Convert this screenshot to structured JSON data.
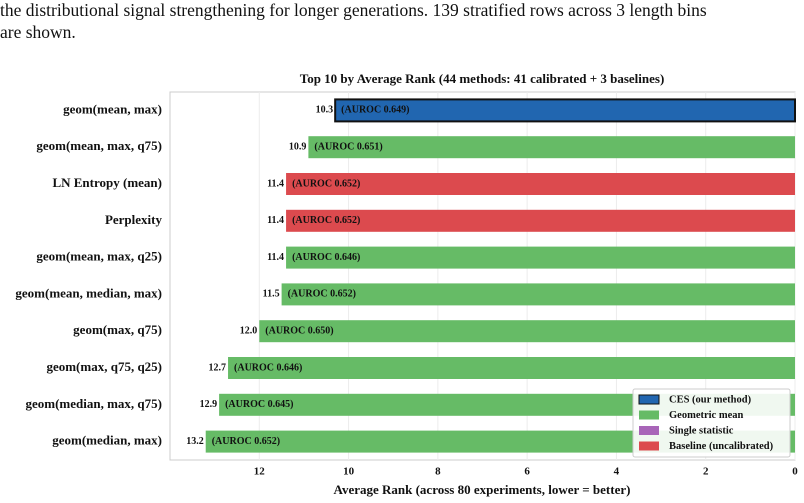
{
  "paragraph": [
    "the distributional signal strengthening for longer generations. 139 stratified rows across 3 length bins",
    "are shown."
  ],
  "chart_data": {
    "type": "barh",
    "title": "Top 10 by Average Rank (44 methods: 41 calibrated + 3 baselines)",
    "x_label": "Average Rank (across 80 experiments, lower = better)",
    "categories": [
      "geom(mean, max)",
      "geom(mean, max, q75)",
      "LN Entropy (mean)",
      "Perplexity",
      "geom(mean, max, q25)",
      "geom(mean, median, max)",
      "geom(max, q75)",
      "geom(max, q75, q25)",
      "geom(median, max, q75)",
      "geom(median, max)"
    ],
    "values": [
      10.3,
      10.9,
      11.4,
      11.4,
      11.4,
      11.5,
      12.0,
      12.7,
      12.9,
      13.2
    ],
    "value_labels": [
      "10.3",
      "10.9",
      "11.4",
      "11.4",
      "11.4",
      "11.5",
      "12.0",
      "12.7",
      "12.9",
      "13.2"
    ],
    "auroc_labels": [
      "(AUROC 0.649)",
      "(AUROC 0.651)",
      "(AUROC 0.652)",
      "(AUROC 0.652)",
      "(AUROC 0.646)",
      "(AUROC 0.652)",
      "(AUROC 0.650)",
      "(AUROC 0.646)",
      "(AUROC 0.645)",
      "(AUROC 0.652)"
    ],
    "colors": [
      "#2166b0",
      "#66bb66",
      "#dc4a4e",
      "#dc4a4e",
      "#66bb66",
      "#66bb66",
      "#66bb66",
      "#66bb66",
      "#66bb66",
      "#66bb66"
    ],
    "legend": [
      {
        "name": "CES (our method)",
        "color": "#2166b0"
      },
      {
        "name": "Geometric mean",
        "color": "#66bb66"
      },
      {
        "name": "Single statistic",
        "color": "#a865b8"
      },
      {
        "name": "Baseline (uncalibrated)",
        "color": "#dc4a4e"
      }
    ],
    "legend_position": "lower right",
    "xlim": [
      14,
      0
    ],
    "xticks": [
      12,
      10,
      8,
      6,
      4,
      2,
      0
    ],
    "grid": true
  }
}
